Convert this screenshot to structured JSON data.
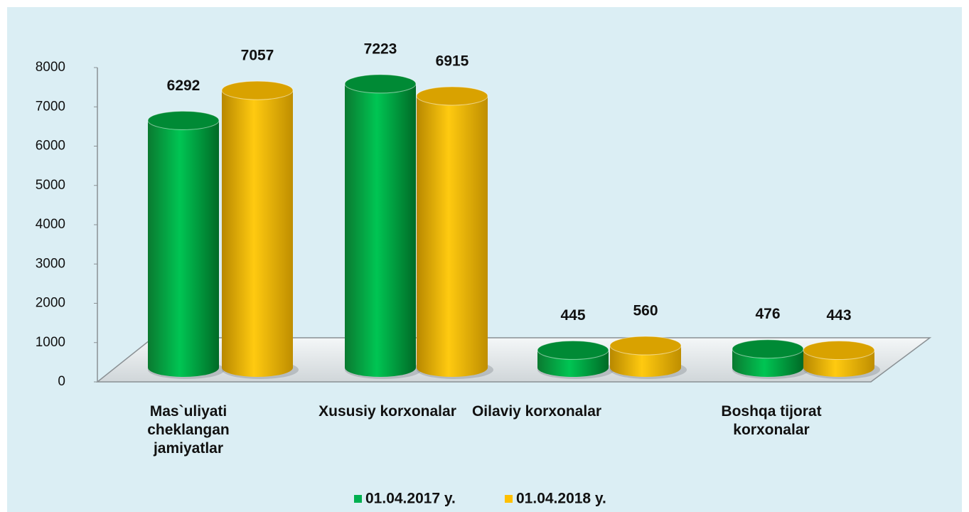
{
  "chart_data": {
    "type": "bar",
    "categories": [
      "Mas`uliyati cheklangan jamiyatlar",
      "Xususiy korxonalar",
      "Oilaviy korxonalar",
      "Boshqa tijorat korxonalar"
    ],
    "series": [
      {
        "name": "01.04.2017 y.",
        "color": "#00b050",
        "values": [
          6292,
          7223,
          445,
          476
        ]
      },
      {
        "name": "01.04.2018 y.",
        "color": "#ffc000",
        "values": [
          7057,
          6915,
          560,
          443
        ]
      }
    ],
    "ylim": [
      0,
      8000
    ],
    "yticks": [
      0,
      1000,
      2000,
      3000,
      4000,
      5000,
      6000,
      7000,
      8000
    ],
    "legend": "bottom"
  }
}
